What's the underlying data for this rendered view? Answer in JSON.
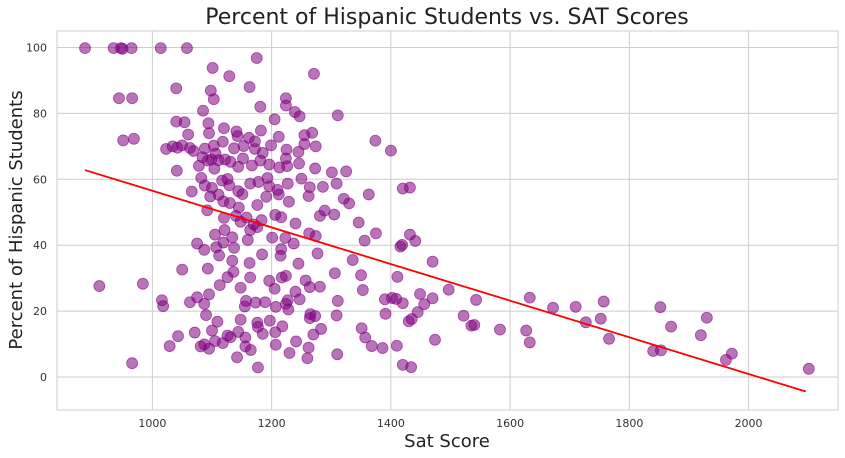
{
  "chart_data": {
    "type": "scatter",
    "title": "Percent of Hispanic Students vs. SAT Scores",
    "xlabel": "Sat Score",
    "ylabel": "Percent of Hispanic Students",
    "xlim": [
      840,
      2150
    ],
    "ylim": [
      -10,
      105
    ],
    "xticks": [
      1000,
      1200,
      1400,
      1600,
      1800,
      2000
    ],
    "yticks": [
      0,
      20,
      40,
      60,
      80,
      100
    ],
    "grid": true,
    "colors": {
      "points": "#800080",
      "trend": "#ff0000",
      "grid": "#cccccc",
      "background": "#ffffff"
    },
    "trendline": {
      "x": [
        887,
        2096
      ],
      "y": [
        62.8,
        -4.4
      ]
    },
    "points": [
      [
        887,
        99.8
      ],
      [
        935,
        99.8
      ],
      [
        947,
        99.8
      ],
      [
        950,
        99.6
      ],
      [
        965,
        99.8
      ],
      [
        1014,
        99.8
      ],
      [
        1058,
        99.8
      ],
      [
        1175,
        96.8
      ],
      [
        1271,
        92
      ],
      [
        1040,
        87.6
      ],
      [
        1101,
        93.8
      ],
      [
        1129,
        91.3
      ],
      [
        1163,
        88
      ],
      [
        944,
        84.6
      ],
      [
        966,
        84.6
      ],
      [
        1098,
        86.9
      ],
      [
        1103,
        84.3
      ],
      [
        1085,
        80.8
      ],
      [
        1181,
        82
      ],
      [
        1205,
        78.2
      ],
      [
        1224,
        84.6
      ],
      [
        1224,
        82.4
      ],
      [
        1247,
        79.1
      ],
      [
        1311,
        79.4
      ],
      [
        1239,
        80.4
      ],
      [
        1040,
        77.5
      ],
      [
        1054,
        77.3
      ],
      [
        1094,
        77
      ],
      [
        1120,
        75.5
      ],
      [
        1095,
        74
      ],
      [
        1141,
        74.5
      ],
      [
        1162,
        72.6
      ],
      [
        1172,
        71.5
      ],
      [
        1182,
        74.8
      ],
      [
        1212,
        72.9
      ],
      [
        1255,
        73.4
      ],
      [
        1268,
        74.1
      ],
      [
        951,
        71.8
      ],
      [
        969,
        72.3
      ],
      [
        1143,
        73.1
      ],
      [
        1374,
        71.7
      ],
      [
        1023,
        69.2
      ],
      [
        1034,
        70
      ],
      [
        1042,
        69.6
      ],
      [
        1050,
        70.3
      ],
      [
        1060,
        73.6
      ],
      [
        1063,
        69.5
      ],
      [
        1069,
        68.6
      ],
      [
        1088,
        69.3
      ],
      [
        1103,
        70.2
      ],
      [
        1106,
        67.8
      ],
      [
        1118,
        71.4
      ],
      [
        1137,
        69.4
      ],
      [
        1153,
        70.1
      ],
      [
        1172,
        69.2
      ],
      [
        1185,
        68
      ],
      [
        1199,
        70.3
      ],
      [
        1225,
        69
      ],
      [
        1245,
        68.3
      ],
      [
        1255,
        70.7
      ],
      [
        1274,
        70
      ],
      [
        1400,
        68.7
      ],
      [
        1041,
        62.6
      ],
      [
        1078,
        64.1
      ],
      [
        1084,
        66.7
      ],
      [
        1093,
        65.7
      ],
      [
        1099,
        66
      ],
      [
        1104,
        63.2
      ],
      [
        1111,
        65.8
      ],
      [
        1122,
        66
      ],
      [
        1131,
        65.3
      ],
      [
        1144,
        63.8
      ],
      [
        1152,
        66.3
      ],
      [
        1167,
        64.2
      ],
      [
        1181,
        65.7
      ],
      [
        1196,
        64.5
      ],
      [
        1213,
        63.6
      ],
      [
        1224,
        66.3
      ],
      [
        1226,
        64
      ],
      [
        1246,
        64.8
      ],
      [
        1273,
        63.3
      ],
      [
        1301,
        62.1
      ],
      [
        1082,
        60.4
      ],
      [
        1088,
        58.1
      ],
      [
        1100,
        57.4
      ],
      [
        1117,
        59.6
      ],
      [
        1126,
        60.1
      ],
      [
        1129,
        58.2
      ],
      [
        1144,
        56.4
      ],
      [
        1164,
        58.7
      ],
      [
        1178,
        59.2
      ],
      [
        1193,
        60.4
      ],
      [
        1196,
        57.9
      ],
      [
        1210,
        56.8
      ],
      [
        1227,
        58.7
      ],
      [
        1250,
        60.2
      ],
      [
        1264,
        57.6
      ],
      [
        1286,
        57.7
      ],
      [
        1309,
        58.7
      ],
      [
        1325,
        62.4
      ],
      [
        1420,
        57.2
      ],
      [
        1432,
        57.5
      ],
      [
        1066,
        56.3
      ],
      [
        1097,
        54.8
      ],
      [
        1111,
        55.3
      ],
      [
        1119,
        53.3
      ],
      [
        1130,
        52.8
      ],
      [
        1145,
        51.4
      ],
      [
        1151,
        55.5
      ],
      [
        1176,
        52.2
      ],
      [
        1191,
        54.7
      ],
      [
        1212,
        55.4
      ],
      [
        1229,
        53.2
      ],
      [
        1262,
        54.9
      ],
      [
        1289,
        50.5
      ],
      [
        1321,
        54.1
      ],
      [
        1330,
        52.7
      ],
      [
        1363,
        55.4
      ],
      [
        1092,
        50.6
      ],
      [
        1120,
        48.3
      ],
      [
        1140,
        48.9
      ],
      [
        1148,
        47.1
      ],
      [
        1158,
        48.4
      ],
      [
        1164,
        44.6
      ],
      [
        1170,
        46.3
      ],
      [
        1176,
        45.5
      ],
      [
        1183,
        47.6
      ],
      [
        1206,
        49.2
      ],
      [
        1216,
        48.5
      ],
      [
        1240,
        46.6
      ],
      [
        1281,
        48.9
      ],
      [
        1305,
        49.3
      ],
      [
        1346,
        46.9
      ],
      [
        1105,
        43.2
      ],
      [
        1121,
        44.6
      ],
      [
        1134,
        42.4
      ],
      [
        1160,
        41.6
      ],
      [
        1201,
        42.3
      ],
      [
        1223,
        42.2
      ],
      [
        1263,
        43.6
      ],
      [
        1274,
        42.8
      ],
      [
        1356,
        41.4
      ],
      [
        1375,
        43.6
      ],
      [
        1432,
        43.2
      ],
      [
        1441,
        41.3
      ],
      [
        1075,
        40.5
      ],
      [
        1087,
        38.6
      ],
      [
        1107,
        39.4
      ],
      [
        1119,
        40.8
      ],
      [
        1137,
        39.2
      ],
      [
        1184,
        37.2
      ],
      [
        1216,
        38.8
      ],
      [
        1237,
        40.5
      ],
      [
        1277,
        37.5
      ],
      [
        1416,
        39.6
      ],
      [
        1419,
        40.1
      ],
      [
        1112,
        36.9
      ],
      [
        1134,
        35.3
      ],
      [
        1163,
        34.6
      ],
      [
        1215,
        36.8
      ],
      [
        1245,
        34.4
      ],
      [
        1336,
        35.5
      ],
      [
        1470,
        35
      ],
      [
        1050,
        32.6
      ],
      [
        1093,
        32.9
      ],
      [
        1126,
        30.3
      ],
      [
        1136,
        31.9
      ],
      [
        1164,
        30.2
      ],
      [
        1196,
        29.2
      ],
      [
        1217,
        30.2
      ],
      [
        1224,
        30.7
      ],
      [
        1257,
        29.3
      ],
      [
        1306,
        31.5
      ],
      [
        1350,
        30.9
      ],
      [
        1411,
        30.4
      ],
      [
        911,
        27.6
      ],
      [
        984,
        28.3
      ],
      [
        1113,
        27.9
      ],
      [
        1148,
        27.1
      ],
      [
        1205,
        26.8
      ],
      [
        1240,
        25.9
      ],
      [
        1264,
        27.3
      ],
      [
        1281,
        27.4
      ],
      [
        1353,
        26.4
      ],
      [
        1449,
        25.2
      ],
      [
        1497,
        26.5
      ],
      [
        1075,
        24.2
      ],
      [
        1095,
        25.1
      ],
      [
        1157,
        23.1
      ],
      [
        1189,
        22.7
      ],
      [
        1224,
        22.2
      ],
      [
        1227,
        23.3
      ],
      [
        1247,
        23.6
      ],
      [
        1311,
        23.1
      ],
      [
        1390,
        23.6
      ],
      [
        1402,
        24
      ],
      [
        1409,
        23.7
      ],
      [
        1420,
        22.4
      ],
      [
        1470,
        23.9
      ],
      [
        1543,
        23.4
      ],
      [
        1633,
        24.1
      ],
      [
        1672,
        21
      ],
      [
        1710,
        21.3
      ],
      [
        1757,
        22.9
      ],
      [
        1852,
        21.2
      ],
      [
        1016,
        23.3
      ],
      [
        1018,
        21.5
      ],
      [
        1063,
        22.7
      ],
      [
        1087,
        22.2
      ],
      [
        1155,
        21.4
      ],
      [
        1173,
        22.6
      ],
      [
        1207,
        21.3
      ],
      [
        1228,
        20.5
      ],
      [
        1265,
        19.1
      ],
      [
        1309,
        18.7
      ],
      [
        1391,
        19.2
      ],
      [
        1445,
        19.7
      ],
      [
        1456,
        22.1
      ],
      [
        1522,
        18.6
      ],
      [
        1752,
        17.7
      ],
      [
        1930,
        18
      ],
      [
        1090,
        18.8
      ],
      [
        1109,
        16.8
      ],
      [
        1148,
        17.4
      ],
      [
        1176,
        16.5
      ],
      [
        1197,
        17.1
      ],
      [
        1218,
        15.4
      ],
      [
        1264,
        17.9
      ],
      [
        1273,
        18.5
      ],
      [
        1351,
        14.8
      ],
      [
        1435,
        17.6
      ],
      [
        1430,
        16.9
      ],
      [
        1535,
        15.6
      ],
      [
        1540,
        15.8
      ],
      [
        1583,
        14.4
      ],
      [
        1627,
        14.1
      ],
      [
        1727,
        16.6
      ],
      [
        1870,
        15.3
      ],
      [
        1920,
        12.7
      ],
      [
        1043,
        12.4
      ],
      [
        1071,
        13.5
      ],
      [
        1100,
        14.1
      ],
      [
        1131,
        12.1
      ],
      [
        1144,
        13.7
      ],
      [
        1156,
        12
      ],
      [
        1177,
        15.2
      ],
      [
        1185,
        13.1
      ],
      [
        1206,
        13.6
      ],
      [
        1270,
        12.9
      ],
      [
        1283,
        14.6
      ],
      [
        1357,
        12
      ],
      [
        1474,
        11.3
      ],
      [
        1633,
        10.5
      ],
      [
        1766,
        11.6
      ],
      [
        1029,
        9.4
      ],
      [
        1081,
        9.3
      ],
      [
        1087,
        9.9
      ],
      [
        1095,
        8.6
      ],
      [
        1105,
        10.9
      ],
      [
        1118,
        10.3
      ],
      [
        1126,
        12.6
      ],
      [
        1156,
        9.3
      ],
      [
        1165,
        8.2
      ],
      [
        1207,
        9.8
      ],
      [
        1241,
        10.8
      ],
      [
        1262,
        8.9
      ],
      [
        1368,
        9.4
      ],
      [
        1386,
        8.8
      ],
      [
        1410,
        9.5
      ],
      [
        1840,
        7.9
      ],
      [
        1853,
        8.1
      ],
      [
        1962,
        5.2
      ],
      [
        1972,
        7.1
      ],
      [
        966,
        4.2
      ],
      [
        1142,
        6
      ],
      [
        1177,
        2.9
      ],
      [
        1230,
        7.3
      ],
      [
        1310,
        6.9
      ],
      [
        1260,
        5.7
      ],
      [
        1420,
        3.7
      ],
      [
        1434,
        3
      ],
      [
        2101,
        2.5
      ]
    ]
  }
}
